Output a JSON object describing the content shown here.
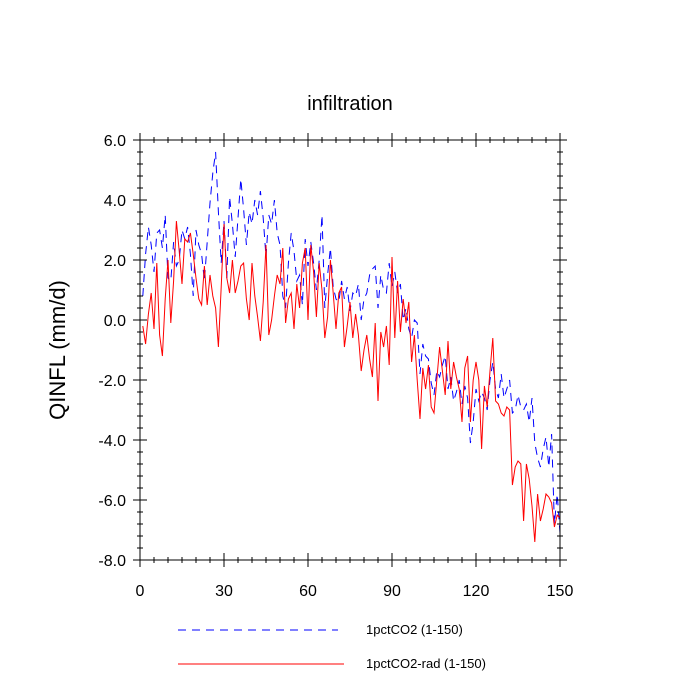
{
  "chart_data": {
    "type": "line",
    "title": "infiltration",
    "xlabel": "",
    "ylabel": "QINFL  (mm/d)",
    "xlim": [
      0,
      150
    ],
    "ylim": [
      -8.0,
      6.0
    ],
    "x_ticks": [
      0,
      30,
      60,
      90,
      120,
      150
    ],
    "x_tick_labels": [
      "0",
      "30",
      "60",
      "90",
      "120",
      "150"
    ],
    "y_ticks": [
      6.0,
      4.0,
      2.0,
      0.0,
      -2.0,
      -4.0,
      -6.0,
      -8.0
    ],
    "y_tick_labels": [
      "6.0",
      "4.0",
      "2.0",
      "0.0",
      "-2.0",
      "-4.0",
      "-6.0",
      "-8.0"
    ],
    "grid": false,
    "legend_position": "bottom",
    "series": [
      {
        "name": "1pctCO2 (1-150)",
        "color": "#0000ff",
        "dash": "dashed",
        "x_start": 1,
        "values": [
          0.8,
          2.2,
          3.1,
          2.5,
          1.6,
          2.9,
          3.0,
          2.4,
          3.5,
          1.4,
          1.3,
          2.6,
          1.8,
          2.0,
          3.0,
          2.7,
          3.1,
          2.2,
          0.8,
          3.0,
          2.5,
          2.2,
          1.3,
          2.6,
          3.9,
          4.9,
          5.6,
          3.6,
          1.9,
          3.3,
          1.4,
          4.1,
          3.2,
          2.1,
          3.4,
          4.7,
          3.7,
          2.5,
          3.6,
          3.2,
          4.0,
          3.5,
          4.3,
          3.4,
          2.1,
          3.5,
          3.2,
          4.0,
          2.9,
          2.5,
          0.8,
          0.4,
          1.9,
          2.9,
          2.3,
          1.3,
          1.5,
          0.5,
          2.7,
          1.8,
          2.6,
          1.9,
          1.0,
          2.0,
          3.5,
          0.4,
          1.5,
          2.4,
          1.1,
          0.7,
          0.6,
          1.3,
          0.7,
          1.1,
          0.3,
          0.9,
          0.8,
          1.2,
          0.0,
          0.7,
          0.9,
          1.5,
          1.7,
          1.8,
          0.4,
          1.5,
          1.0,
          0.9,
          1.9,
          1.1,
          1.6,
          0.9,
          1.2,
          0.0,
          0.4,
          -0.3,
          -0.6,
          0.0,
          -0.1,
          -1.8,
          -0.8,
          -1.2,
          -1.3,
          -2.1,
          -2.5,
          -1.7,
          -1.9,
          -1.5,
          -1.2,
          -2.3,
          -1.9,
          -2.7,
          -2.4,
          -2.0,
          -2.8,
          -2.2,
          -2.6,
          -4.1,
          -3.4,
          -2.3,
          -2.7,
          -2.4,
          -2.6,
          -3.0,
          -2.0,
          -1.4,
          -2.3,
          -2.6,
          -1.8,
          -2.6,
          -2.3,
          -2.0,
          -3.1,
          -3.0,
          -2.5,
          -2.9,
          -3.0,
          -2.8,
          -3.4,
          -2.6,
          -4.1,
          -4.6,
          -4.9,
          -4.3,
          -3.9,
          -4.9,
          -3.8,
          -6.8,
          -5.8,
          -7.1
        ]
      },
      {
        "name": "1pctCO2-rad (1-150)",
        "color": "#ff0000",
        "dash": "solid",
        "x_start": 1,
        "values": [
          -0.2,
          -0.8,
          0.2,
          0.9,
          -0.3,
          1.9,
          -0.5,
          -1.2,
          0.7,
          2.0,
          -0.1,
          1.3,
          3.3,
          2.3,
          1.2,
          2.7,
          2.6,
          2.9,
          2.2,
          1.4,
          0.7,
          0.5,
          1.8,
          0.5,
          1.5,
          0.8,
          0.4,
          -0.9,
          1.1,
          3.2,
          1.4,
          0.9,
          2.0,
          0.9,
          1.3,
          1.8,
          1.9,
          0.7,
          0.0,
          1.9,
          0.8,
          0.1,
          -0.7,
          0.6,
          2.5,
          -0.5,
          0.0,
          0.8,
          1.5,
          1.2,
          2.4,
          -0.1,
          0.7,
          0.9,
          -0.3,
          1.2,
          0.4,
          1.9,
          2.4,
          0.0,
          2.5,
          1.6,
          0.1,
          1.9,
          1.0,
          -0.6,
          0.1,
          2.0,
          0.9,
          -0.3,
          0.9,
          1.1,
          -0.9,
          -0.2,
          0.6,
          -0.6,
          0.2,
          -0.5,
          -1.7,
          -1.0,
          -0.5,
          -1.3,
          -1.9,
          -0.1,
          -2.7,
          -0.4,
          -0.9,
          -0.2,
          -1.5,
          2.1,
          -0.6,
          1.3,
          -0.4,
          0.7,
          -0.1,
          0.6,
          -1.4,
          -0.5,
          -2.0,
          -3.3,
          -1.6,
          -2.3,
          -1.5,
          -2.9,
          -3.1,
          -2.0,
          -0.9,
          -1.7,
          -2.5,
          -0.7,
          -2.3,
          -1.4,
          -1.9,
          -2.3,
          -3.4,
          -1.6,
          -1.2,
          -3.4,
          -2.0,
          -1.4,
          -2.0,
          -4.3,
          -2.2,
          -2.9,
          -1.7,
          -0.6,
          -2.7,
          -2.8,
          -3.1,
          -3.2,
          -2.9,
          -3.0,
          -5.5,
          -4.9,
          -4.7,
          -4.8,
          -6.7,
          -4.8,
          -5.3,
          -6.2,
          -7.4,
          -5.8,
          -6.7,
          -6.3,
          -5.8,
          -5.9,
          -6.1,
          -6.9,
          -6.5,
          -6.6
        ]
      }
    ]
  }
}
